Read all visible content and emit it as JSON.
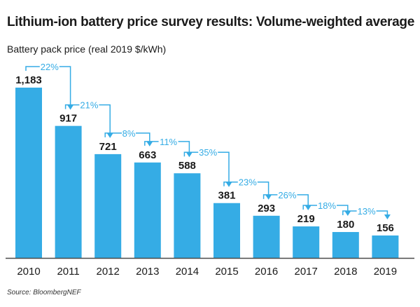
{
  "chart_data": {
    "type": "bar",
    "title": "Lithium-ion battery price survey results: Volume-weighted average",
    "ylabel": "Battery pack price (real 2019 $/kWh)",
    "xlabel": "",
    "source": "Source: BloombergNEF",
    "categories": [
      "2010",
      "2011",
      "2012",
      "2013",
      "2014",
      "2015",
      "2016",
      "2017",
      "2018",
      "2019"
    ],
    "values": [
      1183,
      917,
      721,
      663,
      588,
      381,
      293,
      219,
      180,
      156
    ],
    "value_labels": [
      "1,183",
      "917",
      "721",
      "663",
      "588",
      "381",
      "293",
      "219",
      "180",
      "156"
    ],
    "changes": [
      "22%",
      "21%",
      "8%",
      "11%",
      "35%",
      "23%",
      "26%",
      "18%",
      "13%"
    ],
    "ylim": [
      0,
      1183
    ],
    "grid": false,
    "legend": "none",
    "colors": {
      "bar": "#35ACE5",
      "annotation": "#35ACE5",
      "text": "#1a1a1a",
      "axis": "#4a4a4a"
    }
  }
}
